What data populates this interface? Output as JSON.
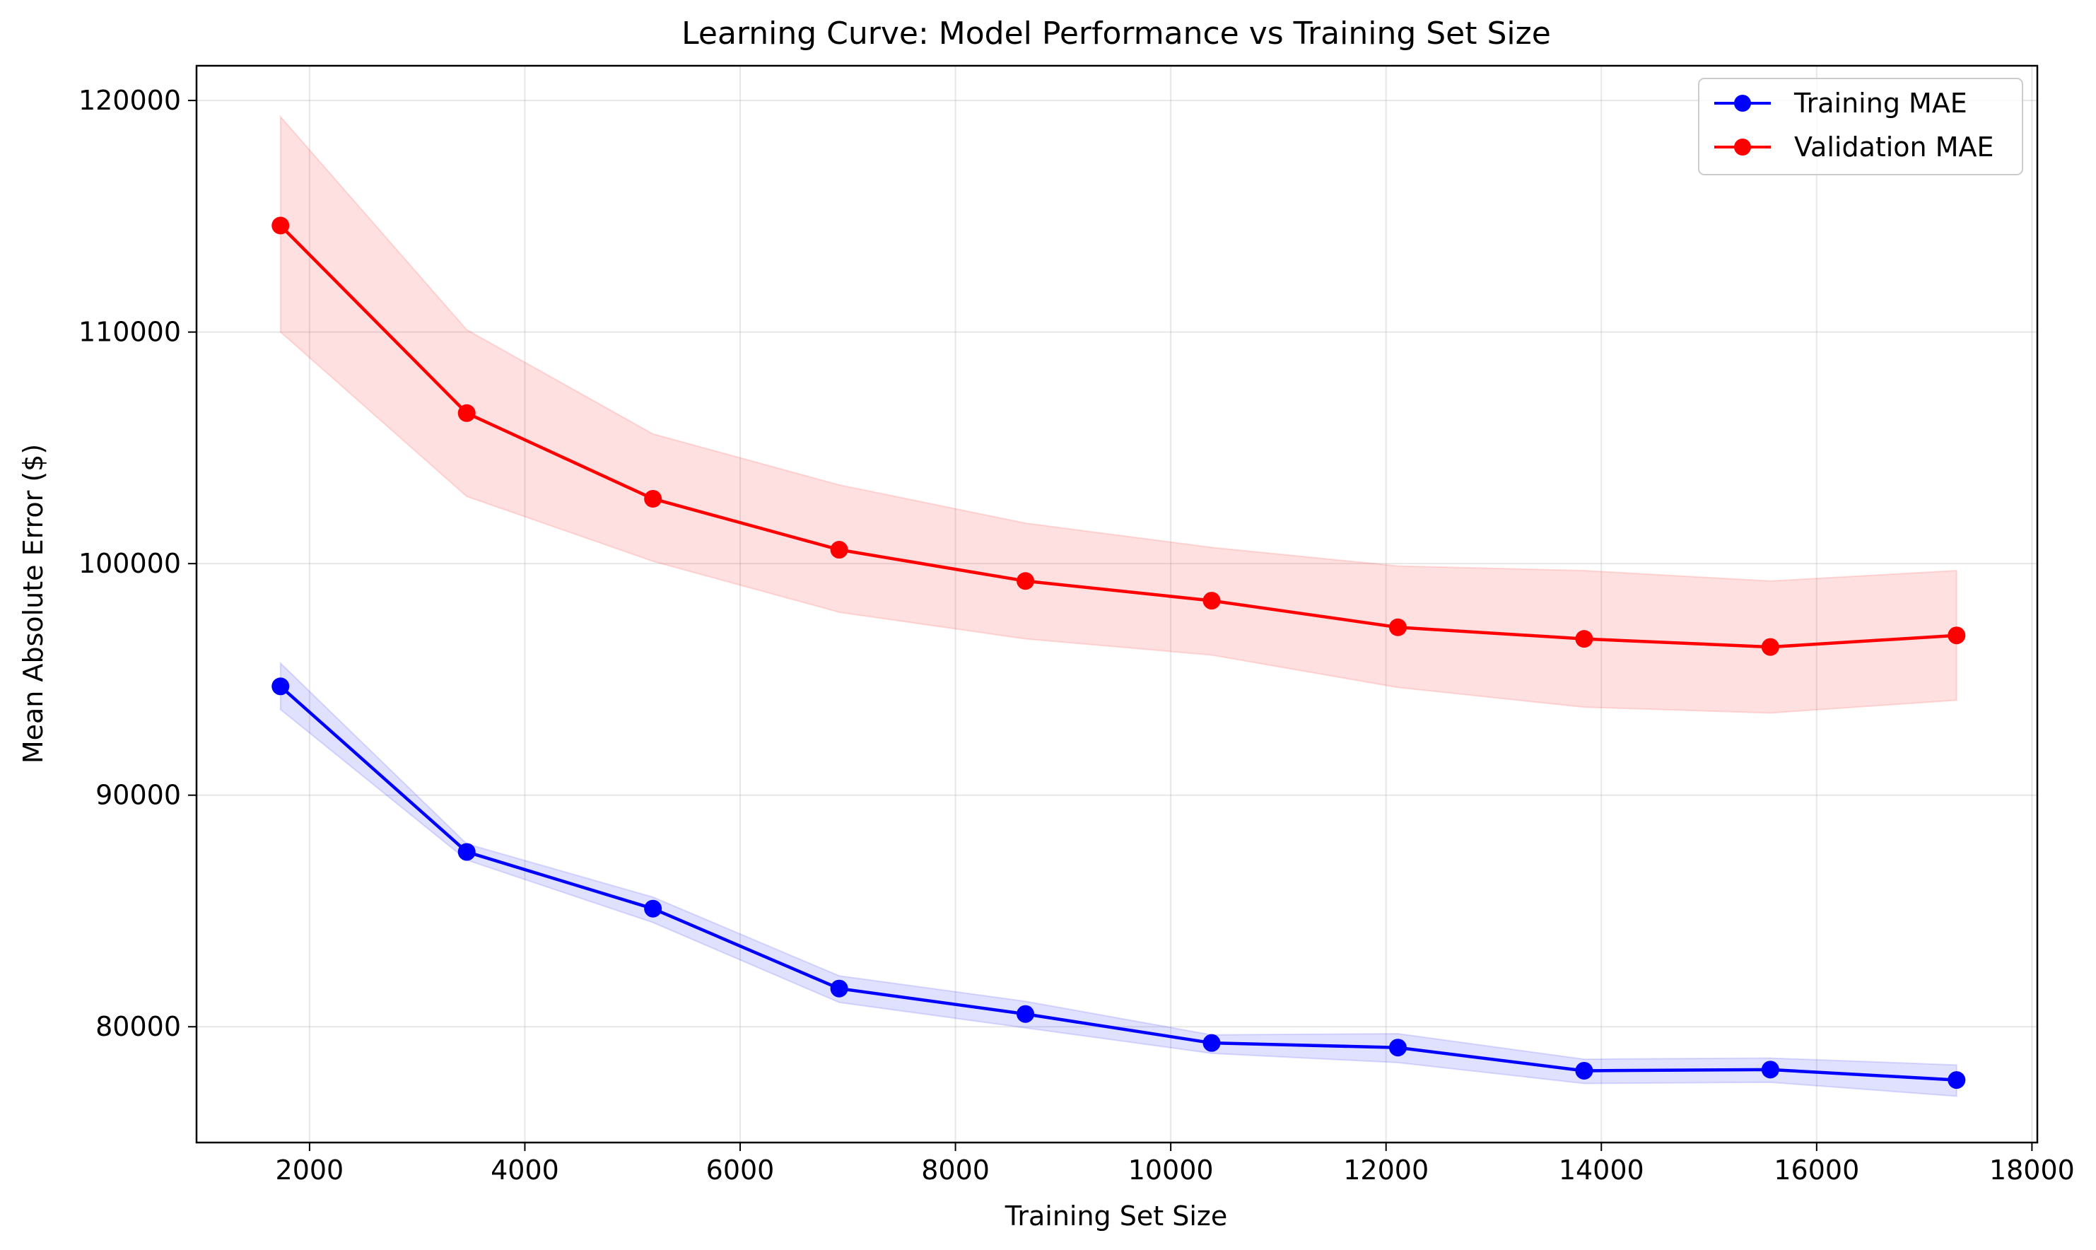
{
  "chart_data": {
    "type": "line",
    "title": "Learning Curve: Model Performance vs Training Set Size",
    "xlabel": "Training Set Size",
    "ylabel": "Mean Absolute Error ($)",
    "xlim": [
      950,
      18050
    ],
    "ylim": [
      75000,
      121500
    ],
    "xticks": [
      2000,
      4000,
      6000,
      8000,
      10000,
      12000,
      14000,
      16000,
      18000
    ],
    "yticks": [
      80000,
      90000,
      100000,
      110000,
      120000
    ],
    "grid": true,
    "legend_position": "top-right",
    "x": [
      1730,
      3460,
      5190,
      6920,
      8650,
      10380,
      12110,
      13840,
      15570,
      17300
    ],
    "series": [
      {
        "name": "Training MAE",
        "color": "#0000ff",
        "band_color": "#0000ff",
        "values": [
          94700,
          87550,
          85100,
          81650,
          80550,
          79300,
          79100,
          78100,
          78150,
          77700
        ],
        "lower": [
          93700,
          87200,
          84500,
          81050,
          79950,
          78850,
          78450,
          77550,
          77600,
          77000
        ],
        "upper": [
          95700,
          87900,
          85600,
          82200,
          81100,
          79650,
          79700,
          78600,
          78650,
          78350
        ]
      },
      {
        "name": "Validation MAE",
        "color": "#ff0000",
        "band_color": "#ff0000",
        "values": [
          114600,
          106500,
          102800,
          100600,
          99250,
          98400,
          97250,
          96750,
          96400,
          96900
        ],
        "lower": [
          110000,
          102900,
          100100,
          97900,
          96750,
          96050,
          94650,
          93800,
          93550,
          94100
        ],
        "upper": [
          119300,
          110100,
          105600,
          103400,
          101750,
          100700,
          99900,
          99700,
          99250,
          99700
        ]
      }
    ]
  }
}
